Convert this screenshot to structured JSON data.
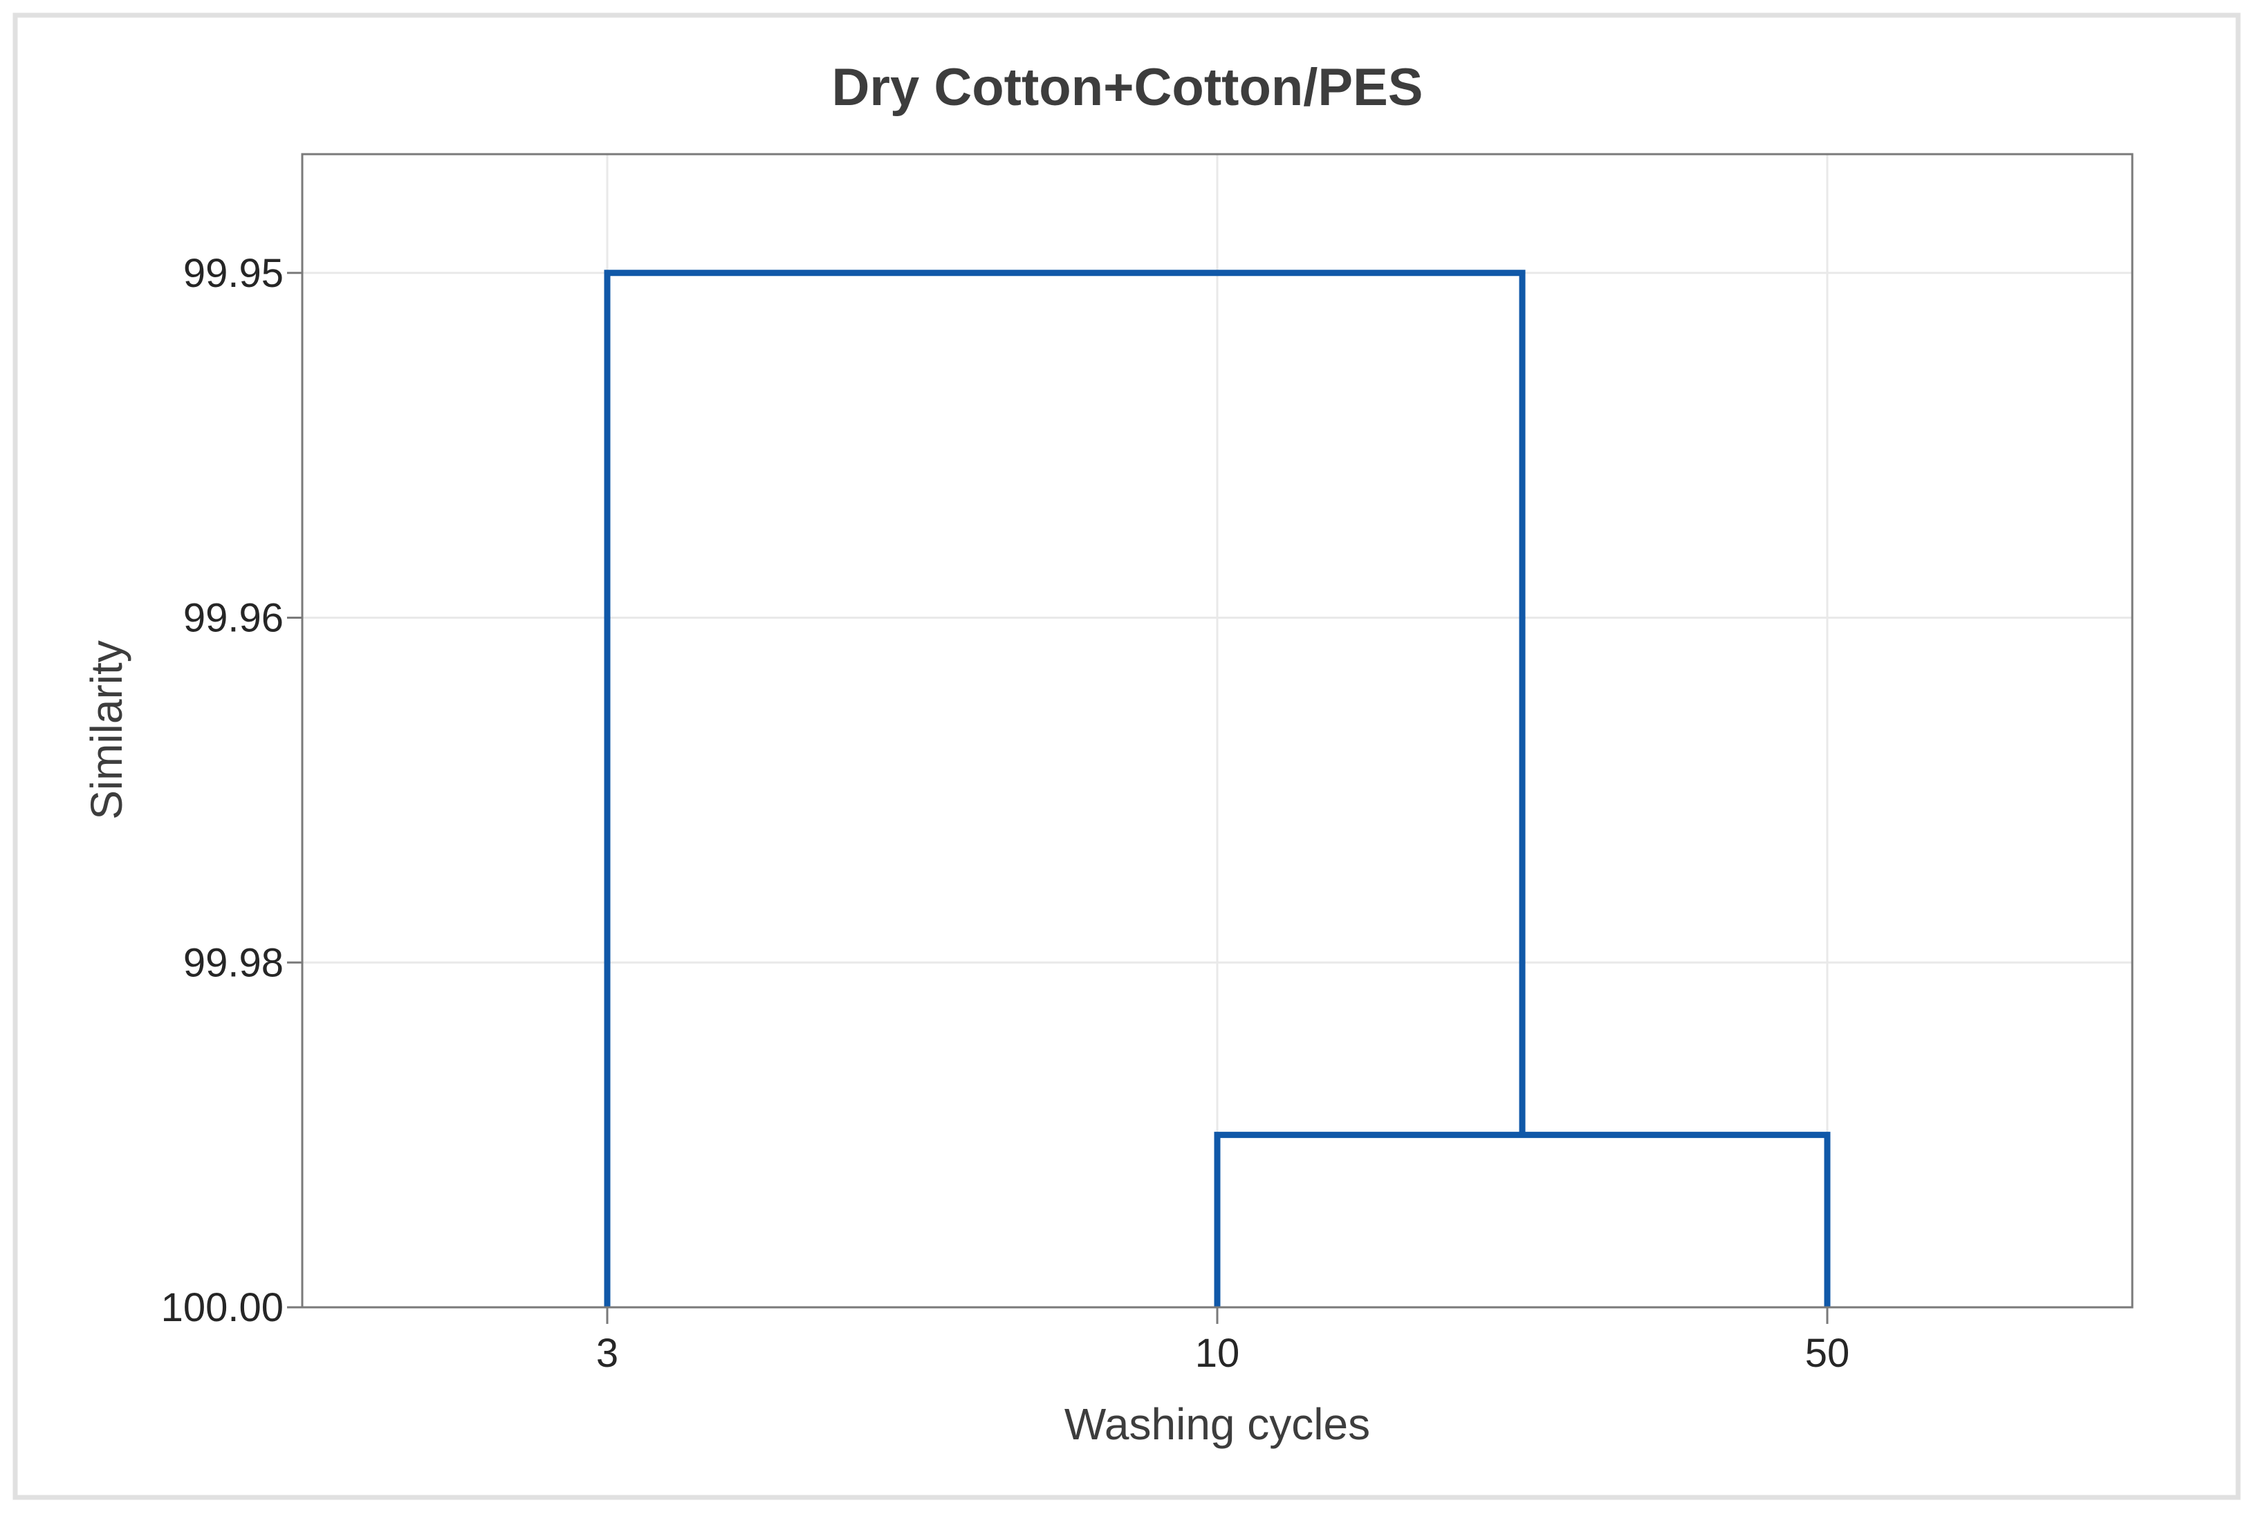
{
  "figure": {
    "title": "Dry Cotton+Cotton/PES"
  },
  "chart_data": {
    "type": "dendrogram",
    "title": "Dry Cotton+Cotton/PES",
    "xlabel": "Washing cycles",
    "ylabel": "Similarity",
    "orientation": "vertical-inverted-axis",
    "leaves": [
      "3",
      "10",
      "50"
    ],
    "yticks": [
      99.95,
      99.96,
      99.98,
      100.0
    ],
    "ytick_labels": [
      "99.95",
      "99.96",
      "99.98",
      "100.00"
    ],
    "merges": [
      {
        "members": [
          "leaf:1",
          "leaf:2"
        ],
        "similarity": 99.99
      },
      {
        "members": [
          "leaf:0",
          "merge:0"
        ],
        "similarity": 99.95
      }
    ],
    "legend": null,
    "grid": true,
    "colors": {
      "branch": "#1058a8",
      "grid": "#e9e9e9",
      "plot_border": "#7a7a7a",
      "figure_border": "#e0e0e0",
      "tick_text": "#262626",
      "title_text": "#3d3d3d"
    }
  }
}
